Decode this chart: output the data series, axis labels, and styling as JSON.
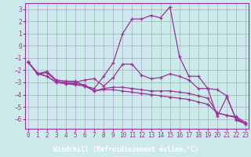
{
  "title": "",
  "xlabel": "Windchill (Refroidissement éolien,°C)",
  "background_color": "#cceaea",
  "grid_color": "#aaaacc",
  "line_color": "#993399",
  "axis_color": "#993399",
  "label_bar_color": "#993399",
  "x_hours": [
    0,
    1,
    2,
    3,
    4,
    5,
    6,
    7,
    8,
    9,
    10,
    11,
    12,
    13,
    14,
    15,
    16,
    17,
    18,
    19,
    20,
    21,
    22,
    23
  ],
  "series": [
    [
      -1.3,
      -2.3,
      -2.1,
      -2.8,
      -2.9,
      -2.9,
      -3.3,
      -3.5,
      -2.5,
      -1.4,
      1.0,
      2.2,
      2.2,
      2.5,
      2.3,
      3.2,
      -0.9,
      -2.5,
      -2.5,
      -3.5,
      -3.6,
      -4.1,
      -6.1,
      -6.4
    ],
    [
      -1.3,
      -2.3,
      -2.2,
      -2.9,
      -3.0,
      -3.0,
      -2.8,
      -2.7,
      -3.3,
      -2.6,
      -1.5,
      -1.5,
      -2.4,
      -2.7,
      -2.6,
      -2.3,
      -2.5,
      -2.8,
      -3.5,
      -3.5,
      -5.8,
      -4.2,
      -6.0,
      -6.4
    ],
    [
      -1.3,
      -2.2,
      -2.5,
      -3.0,
      -3.1,
      -3.1,
      -3.2,
      -3.7,
      -3.5,
      -3.4,
      -3.4,
      -3.5,
      -3.6,
      -3.7,
      -3.7,
      -3.7,
      -3.8,
      -3.9,
      -4.1,
      -4.3,
      -5.5,
      -5.7,
      -5.8,
      -6.3
    ],
    [
      -1.3,
      -2.3,
      -2.5,
      -3.0,
      -3.1,
      -3.2,
      -3.3,
      -3.7,
      -3.6,
      -3.6,
      -3.7,
      -3.8,
      -3.9,
      -4.0,
      -4.1,
      -4.2,
      -4.3,
      -4.4,
      -4.6,
      -4.8,
      -5.5,
      -5.7,
      -5.9,
      -6.4
    ]
  ],
  "ylim": [
    -6.8,
    3.5
  ],
  "xlim": [
    -0.3,
    23.3
  ],
  "yticks": [
    3,
    2,
    1,
    0,
    -1,
    -2,
    -3,
    -4,
    -5,
    -6
  ],
  "xticks": [
    0,
    1,
    2,
    3,
    4,
    5,
    6,
    7,
    8,
    9,
    10,
    11,
    12,
    13,
    14,
    15,
    16,
    17,
    18,
    19,
    20,
    21,
    22,
    23
  ],
  "marker": "+",
  "linewidth": 0.9,
  "markersize": 3.0,
  "tick_fontsize": 5.5,
  "xlabel_fontsize": 6.0
}
